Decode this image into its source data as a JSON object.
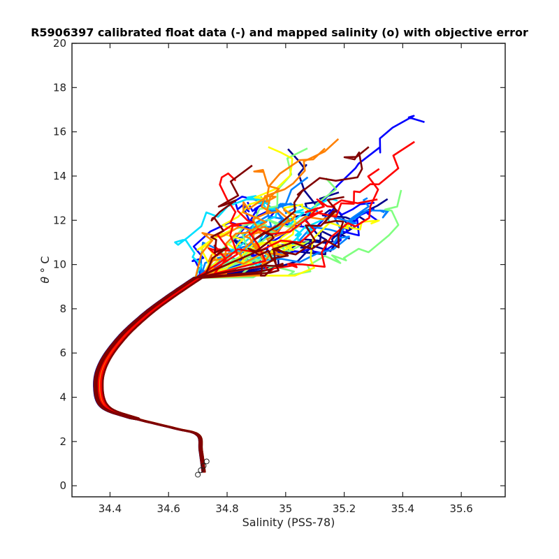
{
  "chart_data": {
    "type": "line",
    "title": "R5906397 calibrated float data (-) and mapped salinity (o) with objective error",
    "xlabel": "Salinity (PSS-78)",
    "ylabel_symbol": "θ",
    "ylabel_unit": "° C",
    "xlim": [
      34.27,
      35.75
    ],
    "ylim": [
      -0.5,
      20
    ],
    "x_ticks": [
      "34.4",
      "34.6",
      "34.8",
      "35",
      "35.2",
      "35.4",
      "35.6"
    ],
    "y_ticks": [
      "0",
      "2",
      "4",
      "6",
      "8",
      "10",
      "12",
      "14",
      "16",
      "18",
      "20"
    ],
    "grid": false,
    "colormap": [
      "#00008b",
      "#0000ff",
      "#0080ff",
      "#00e0ff",
      "#80ff80",
      "#ffff00",
      "#ff8000",
      "#ff0000",
      "#800000"
    ],
    "deep_curve": {
      "x": [
        34.72,
        34.71,
        34.7,
        34.62,
        34.47,
        34.38,
        34.36,
        34.38,
        34.44,
        34.52,
        34.6,
        34.7
      ],
      "y": [
        0.6,
        1.6,
        2.3,
        2.6,
        3.1,
        3.6,
        4.6,
        5.6,
        6.7,
        7.7,
        8.5,
        9.4
      ]
    },
    "mapped_points": {
      "x": [
        34.7,
        34.71,
        34.72,
        34.73
      ],
      "y": [
        0.5,
        0.7,
        0.9,
        1.1
      ]
    },
    "series_count": 45
  }
}
